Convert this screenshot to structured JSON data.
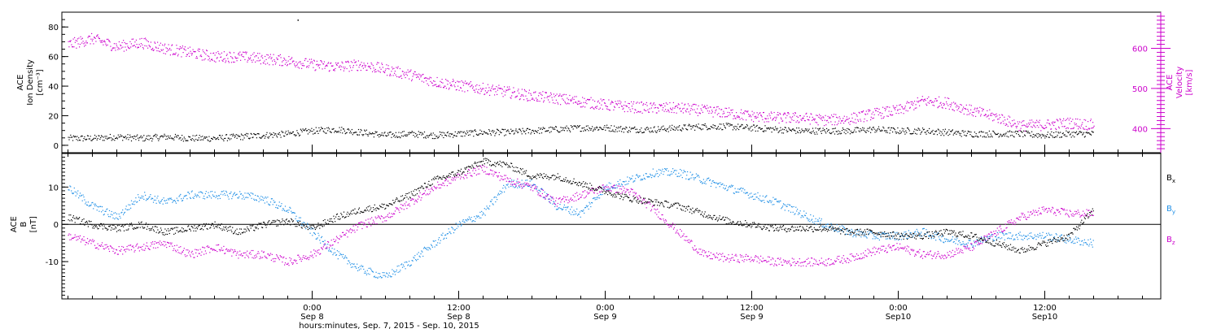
{
  "colors": {
    "black": "#000000",
    "magenta": "#cc00cc",
    "blue": "#1f8fe6",
    "zero_line": "#000000"
  },
  "chart_data": [
    {
      "type": "scatter",
      "panel": "top",
      "x_unit": "hours since 0:00 Sep 8, 2015",
      "xlim": [
        -20.5,
        69.5
      ],
      "left_axis": {
        "label_lines": [
          "ACE",
          "Ion Density",
          "[cm⁻³]"
        ],
        "ylim": [
          -5,
          90
        ],
        "ticks": [
          0,
          20,
          40,
          60,
          80
        ],
        "tick_labels": [
          "0",
          "20",
          "40",
          "60",
          "80"
        ]
      },
      "right_axis": {
        "label_lines": [
          "ACE",
          "Velocity",
          "[km/s]"
        ],
        "ylim": [
          340,
          690
        ],
        "ticks": [
          400,
          500,
          600
        ],
        "tick_labels": [
          "400",
          "500",
          "600"
        ]
      },
      "series": [
        {
          "axis": "right",
          "color": "magenta",
          "x": [
            -20,
            -18,
            -16,
            -14,
            -12,
            -10,
            -8,
            -6,
            -4,
            -2,
            0,
            2,
            4,
            6,
            8,
            10,
            12,
            14,
            16,
            18,
            20,
            22,
            24,
            26,
            28,
            30,
            32,
            34,
            36,
            38,
            40,
            42,
            44,
            46,
            48,
            50,
            52,
            54,
            56,
            58,
            60,
            62,
            64
          ],
          "y": [
            610,
            625,
            605,
            615,
            600,
            590,
            580,
            580,
            575,
            570,
            560,
            555,
            560,
            548,
            535,
            518,
            508,
            500,
            492,
            482,
            476,
            468,
            460,
            455,
            452,
            452,
            446,
            440,
            432,
            428,
            428,
            422,
            425,
            438,
            446,
            470,
            465,
            445,
            430,
            408,
            410,
            415,
            410
          ]
        },
        {
          "axis": "left",
          "color": "black",
          "x": [
            -20,
            -18,
            -16,
            -14,
            -12,
            -10,
            -8,
            -6,
            -4,
            -2,
            0,
            2,
            4,
            6,
            8,
            10,
            12,
            14,
            16,
            18,
            20,
            22,
            24,
            26,
            28,
            30,
            32,
            34,
            36,
            38,
            40,
            42,
            44,
            46,
            48,
            50,
            52,
            54,
            56,
            58,
            60,
            62,
            64
          ],
          "y": [
            5,
            5,
            6,
            5,
            6,
            5,
            5,
            6,
            7,
            8,
            10,
            11,
            9,
            7,
            8,
            7,
            8,
            9,
            9,
            10,
            11,
            12,
            12,
            11,
            11,
            12,
            13,
            13,
            12,
            11,
            10,
            10,
            10,
            11,
            10,
            10,
            9,
            8,
            8,
            8,
            7,
            8,
            8
          ]
        }
      ]
    },
    {
      "type": "scatter",
      "panel": "bottom",
      "x_unit": "hours since 0:00 Sep 8, 2015",
      "xlim": [
        -20.5,
        69.5
      ],
      "left_axis": {
        "label_lines": [
          "ACE",
          "B",
          "[nT]"
        ],
        "ylim": [
          -20,
          19
        ],
        "ticks": [
          -10,
          0,
          10
        ],
        "tick_labels": [
          "-10",
          "0",
          "10"
        ]
      },
      "zero_line": 0,
      "legend_placement": "right",
      "series": [
        {
          "name": "Bx",
          "legend_base": "B",
          "legend_sub": "x",
          "color": "black",
          "x": [
            -20,
            -18,
            -16,
            -14,
            -12,
            -10,
            -8,
            -6,
            -4,
            -2,
            0,
            2,
            4,
            6,
            8,
            10,
            12,
            14,
            16,
            18,
            20,
            22,
            24,
            26,
            28,
            30,
            32,
            34,
            36,
            38,
            40,
            42,
            44,
            46,
            48,
            50,
            52,
            54,
            56,
            58,
            60,
            62,
            64
          ],
          "y": [
            2,
            0,
            -1,
            0,
            -2,
            -1,
            0,
            -2,
            0,
            1,
            -1,
            2,
            4,
            5,
            8,
            12,
            14,
            17,
            16,
            13,
            13,
            11,
            9,
            7,
            6,
            5,
            3,
            1,
            0,
            -1,
            -1,
            -1,
            -2,
            -2,
            -3,
            -3,
            -2,
            -3,
            -5,
            -7,
            -5,
            -3,
            4
          ]
        },
        {
          "name": "By",
          "legend_base": "B",
          "legend_sub": "y",
          "color": "blue",
          "x": [
            -20,
            -18,
            -16,
            -14,
            -12,
            -10,
            -8,
            -6,
            -4,
            -2,
            0,
            2,
            4,
            6,
            8,
            10,
            12,
            14,
            16,
            18,
            20,
            22,
            24,
            26,
            28,
            30,
            32,
            34,
            36,
            38,
            40,
            42,
            44,
            46,
            48,
            50,
            52,
            54,
            56,
            58,
            60,
            62,
            64
          ],
          "y": [
            10,
            5,
            2,
            8,
            6,
            8,
            8,
            8,
            7,
            4,
            -2,
            -8,
            -12,
            -14,
            -10,
            -5,
            0,
            3,
            11,
            11,
            5,
            3,
            10,
            12,
            14,
            14,
            12,
            10,
            8,
            6,
            3,
            0,
            -2,
            -3,
            -3,
            -2,
            -4,
            -5,
            -3,
            -3,
            -3,
            -4,
            -5
          ]
        },
        {
          "name": "Bz",
          "legend_base": "B",
          "legend_sub": "z",
          "color": "magenta",
          "x": [
            -20,
            -18,
            -16,
            -14,
            -12,
            -10,
            -8,
            -6,
            -4,
            -2,
            0,
            2,
            4,
            6,
            8,
            10,
            12,
            14,
            16,
            18,
            20,
            22,
            24,
            26,
            28,
            30,
            32,
            34,
            36,
            38,
            40,
            42,
            44,
            46,
            48,
            50,
            52,
            54,
            56,
            58,
            60,
            62,
            64
          ],
          "y": [
            -3,
            -5,
            -7,
            -6,
            -5,
            -8,
            -6,
            -8,
            -8,
            -10,
            -8,
            -4,
            0,
            2,
            6,
            10,
            13,
            15,
            12,
            10,
            6,
            8,
            10,
            9,
            4,
            -2,
            -8,
            -9,
            -9,
            -10,
            -10,
            -10,
            -9,
            -7,
            -6,
            -8,
            -8,
            -6,
            -2,
            2,
            4,
            3,
            3
          ]
        }
      ]
    }
  ],
  "x_axis": {
    "ticks": [
      {
        "x": 0,
        "time": "0:00",
        "date": "Sep 8"
      },
      {
        "x": 12,
        "time": "12:00",
        "date": "Sep 8"
      },
      {
        "x": 24,
        "time": "0:00",
        "date": "Sep 9"
      },
      {
        "x": 36,
        "time": "12:00",
        "date": "Sep 9"
      },
      {
        "x": 48,
        "time": "0:00",
        "date": "Sep10"
      },
      {
        "x": 60,
        "time": "12:00",
        "date": "Sep10"
      }
    ],
    "minor_step": 2,
    "label": "hours:minutes, Sep.  7, 2015 - Sep. 10, 2015"
  }
}
